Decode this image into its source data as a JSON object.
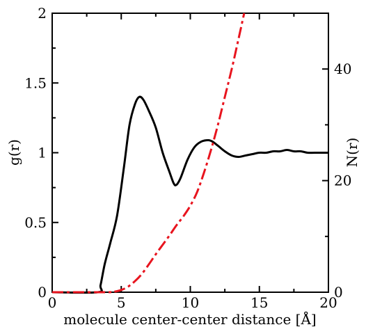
{
  "chart_data": {
    "type": "line",
    "title": "",
    "xlabel": "molecule center-center distance [Å]",
    "ylabel": "g(r)",
    "y2label": "N(r)",
    "xlim": [
      0,
      20
    ],
    "ylim": [
      0,
      2
    ],
    "y2lim": [
      0,
      50
    ],
    "grid": false,
    "legend": "none",
    "x_ticks": [
      "0",
      "5",
      "10",
      "15",
      "20"
    ],
    "y_ticks": [
      "0",
      "0.5",
      "1",
      "1.5",
      "2"
    ],
    "y2_ticks": [
      "0",
      "20",
      "40"
    ],
    "series": [
      {
        "axis": "left",
        "color": "#000000",
        "style": "solid",
        "x": [
          0,
          3.3,
          3.5,
          3.8,
          4.2,
          4.7,
          5.2,
          5.6,
          6.0,
          6.3,
          6.6,
          7.0,
          7.5,
          8.0,
          8.5,
          8.8,
          9.0,
          9.3,
          9.8,
          10.3,
          10.8,
          11.3,
          11.6,
          12.0,
          12.5,
          13.0,
          13.5,
          14.0,
          14.5,
          15.0,
          15.5,
          16.0,
          16.5,
          17.0,
          17.5,
          18.0,
          18.5,
          19.0,
          19.5,
          20.0
        ],
        "y": [
          0,
          0,
          0.05,
          0.2,
          0.35,
          0.55,
          0.9,
          1.2,
          1.35,
          1.4,
          1.38,
          1.3,
          1.18,
          1.0,
          0.86,
          0.78,
          0.77,
          0.82,
          0.95,
          1.04,
          1.08,
          1.09,
          1.08,
          1.05,
          1.01,
          0.98,
          0.97,
          0.98,
          0.99,
          1.0,
          1.0,
          1.01,
          1.01,
          1.02,
          1.01,
          1.01,
          1.0,
          1.0,
          1.0,
          1.0
        ]
      },
      {
        "axis": "right",
        "color": "#e8141e",
        "style": "dash-dot",
        "x": [
          0,
          4.0,
          4.5,
          5.0,
          5.5,
          6.0,
          6.5,
          7.0,
          7.5,
          8.0,
          8.5,
          9.0,
          9.5,
          10.0,
          10.5,
          11.0,
          11.5,
          12.0,
          12.5,
          13.0,
          13.5,
          13.9
        ],
        "y": [
          0,
          0,
          0.1,
          0.4,
          1.0,
          2.0,
          3.3,
          5.0,
          6.8,
          8.5,
          10.2,
          12.0,
          13.6,
          15.5,
          18.0,
          21.5,
          25.5,
          30.0,
          35.0,
          40.0,
          45.5,
          50.0
        ]
      }
    ]
  }
}
